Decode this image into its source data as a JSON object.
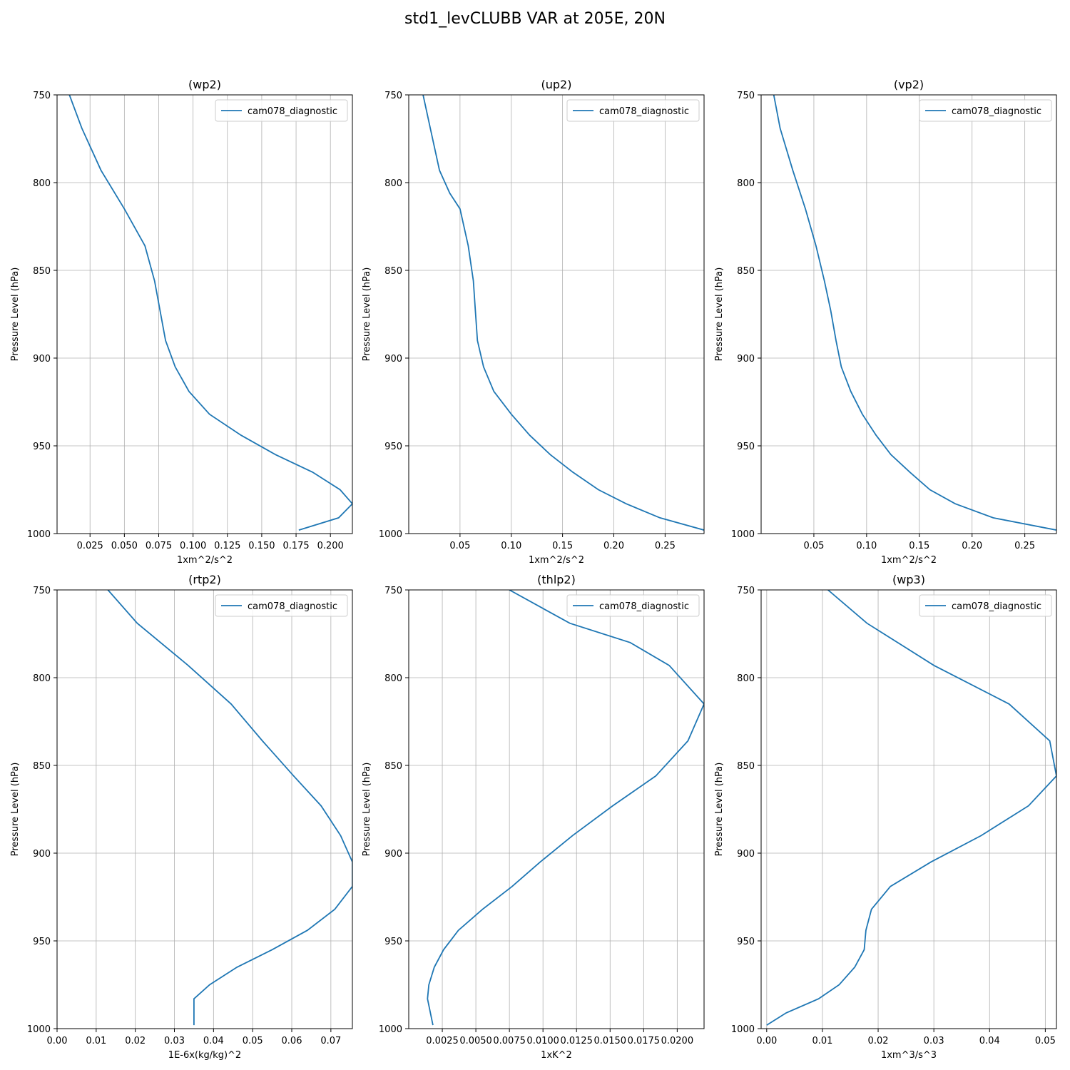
{
  "figure": {
    "suptitle": "std1_levCLUBB VAR at 205E, 20N",
    "line_color": "#1f77b4"
  },
  "chart_data": [
    {
      "type": "line",
      "title": "(wp2)",
      "xlabel": "1xm^2/s^2",
      "ylabel": "Pressure Level (hPa)",
      "xlim": [
        0.001,
        0.216
      ],
      "ylim": [
        1000,
        750
      ],
      "xticks": [
        0.025,
        0.05,
        0.075,
        0.1,
        0.125,
        0.15,
        0.175,
        0.2
      ],
      "xtick_labels": [
        "0.025",
        "0.050",
        "0.075",
        "0.100",
        "0.125",
        "0.150",
        "0.175",
        "0.200"
      ],
      "yticks": [
        750,
        800,
        850,
        900,
        950,
        1000
      ],
      "ytick_labels": [
        "750",
        "800",
        "850",
        "900",
        "950",
        "1000"
      ],
      "grid": true,
      "legend_position": "upper-right",
      "series": [
        {
          "name": "cam078_diagnostic",
          "x": [
            0.01,
            0.019,
            0.033,
            0.05,
            0.065,
            0.072,
            0.076,
            0.08,
            0.087,
            0.097,
            0.112,
            0.135,
            0.16,
            0.187,
            0.207,
            0.216,
            0.206,
            0.177
          ],
          "y": [
            750,
            769,
            793,
            815,
            836,
            856,
            873,
            890,
            905,
            919,
            932,
            944,
            955,
            965,
            975,
            983,
            991,
            998
          ]
        }
      ]
    },
    {
      "type": "line",
      "title": "(up2)",
      "xlabel": "1xm^2/s^2",
      "ylabel": "Pressure Level (hPa)",
      "xlim": [
        0.0,
        0.288
      ],
      "ylim": [
        1000,
        750
      ],
      "xticks": [
        0.05,
        0.1,
        0.15,
        0.2,
        0.25
      ],
      "xtick_labels": [
        "0.05",
        "0.10",
        "0.15",
        "0.20",
        "0.25"
      ],
      "yticks": [
        750,
        800,
        850,
        900,
        950,
        1000
      ],
      "ytick_labels": [
        "750",
        "800",
        "850",
        "900",
        "950",
        "1000"
      ],
      "grid": true,
      "legend_position": "upper-right",
      "series": [
        {
          "name": "cam078_diagnostic",
          "x": [
            0.014,
            0.021,
            0.03,
            0.04,
            0.05,
            0.058,
            0.063,
            0.065,
            0.067,
            0.073,
            0.083,
            0.1,
            0.118,
            0.138,
            0.16,
            0.185,
            0.212,
            0.245,
            0.288
          ],
          "y": [
            750,
            769,
            793,
            806,
            815,
            836,
            856,
            873,
            890,
            905,
            919,
            932,
            944,
            955,
            965,
            975,
            983,
            991,
            998
          ]
        }
      ]
    },
    {
      "type": "line",
      "title": "(vp2)",
      "xlabel": "1xm^2/s^2",
      "ylabel": "Pressure Level (hPa)",
      "xlim": [
        0.0,
        0.28
      ],
      "ylim": [
        1000,
        750
      ],
      "xticks": [
        0.05,
        0.1,
        0.15,
        0.2,
        0.25
      ],
      "xtick_labels": [
        "0.05",
        "0.10",
        "0.15",
        "0.20",
        "0.25"
      ],
      "yticks": [
        750,
        800,
        850,
        900,
        950,
        1000
      ],
      "ytick_labels": [
        "750",
        "800",
        "850",
        "900",
        "950",
        "1000"
      ],
      "grid": true,
      "legend_position": "upper-right",
      "series": [
        {
          "name": "cam078_diagnostic",
          "x": [
            0.012,
            0.018,
            0.03,
            0.042,
            0.052,
            0.06,
            0.066,
            0.071,
            0.076,
            0.085,
            0.096,
            0.109,
            0.123,
            0.141,
            0.16,
            0.184,
            0.22,
            0.28
          ],
          "y": [
            750,
            769,
            793,
            815,
            836,
            856,
            873,
            890,
            905,
            919,
            932,
            944,
            955,
            965,
            975,
            983,
            991,
            998
          ]
        }
      ]
    },
    {
      "type": "line",
      "title": "(rtp2)",
      "xlabel": "1E-6x(kg/kg)^2",
      "ylabel": "Pressure Level (hPa)",
      "xlim": [
        0.0,
        0.0755
      ],
      "ylim": [
        1000,
        750
      ],
      "xticks": [
        0.0,
        0.01,
        0.02,
        0.03,
        0.04,
        0.05,
        0.06,
        0.07
      ],
      "xtick_labels": [
        "0.00",
        "0.01",
        "0.02",
        "0.03",
        "0.04",
        "0.05",
        "0.06",
        "0.07"
      ],
      "yticks": [
        750,
        800,
        850,
        900,
        950,
        1000
      ],
      "ytick_labels": [
        "750",
        "800",
        "850",
        "900",
        "950",
        "1000"
      ],
      "grid": true,
      "legend_position": "upper-right",
      "series": [
        {
          "name": "cam078_diagnostic",
          "x": [
            0.013,
            0.0205,
            0.0335,
            0.0445,
            0.0525,
            0.0605,
            0.0675,
            0.0725,
            0.0755,
            0.0755,
            0.071,
            0.064,
            0.055,
            0.046,
            0.039,
            0.035,
            0.035,
            0.035
          ],
          "y": [
            750,
            769,
            793,
            815,
            836,
            856,
            873,
            890,
            905,
            919,
            932,
            944,
            955,
            965,
            975,
            983,
            991,
            998
          ]
        }
      ]
    },
    {
      "type": "line",
      "title": "(thlp2)",
      "xlabel": "1xK^2",
      "ylabel": "Pressure Level (hPa)",
      "xlim": [
        0.0,
        0.022
      ],
      "ylim": [
        1000,
        750
      ],
      "xticks": [
        0.0025,
        0.005,
        0.0075,
        0.01,
        0.0125,
        0.015,
        0.0175,
        0.02
      ],
      "xtick_labels": [
        "0.0025",
        "0.0050",
        "0.0075",
        "0.0100",
        "0.0125",
        "0.0150",
        "0.0175",
        "0.0200"
      ],
      "yticks": [
        750,
        800,
        850,
        900,
        950,
        1000
      ],
      "ytick_labels": [
        "750",
        "800",
        "850",
        "900",
        "950",
        "1000"
      ],
      "grid": true,
      "legend_position": "upper-right",
      "series": [
        {
          "name": "cam078_diagnostic",
          "x": [
            0.0075,
            0.012,
            0.0165,
            0.0194,
            0.022,
            0.0208,
            0.0184,
            0.0152,
            0.0122,
            0.0098,
            0.0077,
            0.0055,
            0.0037,
            0.0026,
            0.0019,
            0.0015,
            0.0014,
            0.0018
          ],
          "y": [
            750,
            769,
            780,
            793,
            815,
            836,
            856,
            873,
            890,
            905,
            919,
            932,
            944,
            955,
            965,
            975,
            983,
            998
          ]
        }
      ]
    },
    {
      "type": "line",
      "title": "(wp3)",
      "xlabel": "1xm^3/s^3",
      "ylabel": "Pressure Level (hPa)",
      "xlim": [
        -0.001,
        0.052
      ],
      "ylim": [
        1000,
        750
      ],
      "xticks": [
        0.0,
        0.01,
        0.02,
        0.03,
        0.04,
        0.05
      ],
      "xtick_labels": [
        "0.00",
        "0.01",
        "0.02",
        "0.03",
        "0.04",
        "0.05"
      ],
      "yticks": [
        750,
        800,
        850,
        900,
        950,
        1000
      ],
      "ytick_labels": [
        "750",
        "800",
        "850",
        "900",
        "950",
        "1000"
      ],
      "grid": true,
      "legend_position": "upper-right",
      "series": [
        {
          "name": "cam078_diagnostic",
          "x": [
            0.011,
            0.018,
            0.03,
            0.0435,
            0.0508,
            0.052,
            0.047,
            0.0385,
            0.0295,
            0.0222,
            0.0188,
            0.0178,
            0.0175,
            0.0158,
            0.013,
            0.0093,
            0.0035,
            0.0
          ],
          "y": [
            750,
            769,
            793,
            815,
            836,
            856,
            873,
            890,
            905,
            919,
            932,
            944,
            955,
            965,
            975,
            983,
            991,
            998
          ]
        }
      ]
    }
  ]
}
